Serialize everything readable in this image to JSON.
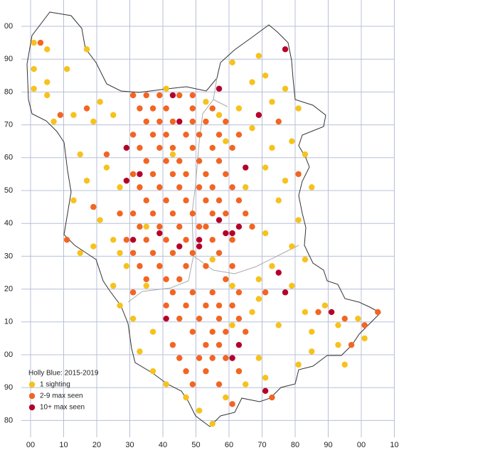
{
  "chart_data": {
    "type": "scatter",
    "title": "Holly Blue:  2015-2019",
    "xlim": [
      0,
      110
    ],
    "ylim": [
      78,
      208
    ],
    "xticks": [
      {
        "value": 0,
        "label": "00"
      },
      10,
      20,
      30,
      40,
      50,
      60,
      70,
      80,
      90,
      {
        "value": 100,
        "label": "00"
      },
      {
        "value": 110,
        "label": "10"
      }
    ],
    "yticks": [
      80,
      90,
      {
        "value": 100,
        "label": "00"
      },
      {
        "value": 110,
        "label": "10"
      },
      {
        "value": 120,
        "label": "20"
      },
      {
        "value": 130,
        "label": "30"
      },
      {
        "value": 140,
        "label": "40"
      },
      {
        "value": 150,
        "label": "50"
      },
      {
        "value": 160,
        "label": "60"
      },
      {
        "value": 170,
        "label": "70"
      },
      {
        "value": 180,
        "label": "80"
      },
      {
        "value": 190,
        "label": "90"
      },
      {
        "value": 200,
        "label": "00"
      }
    ],
    "grid": true,
    "legend": "bottom-left",
    "series": [
      {
        "name": "1 sighting",
        "color": "#f6c21c",
        "x": [
          1,
          5,
          17,
          1,
          5,
          11,
          1,
          5,
          13,
          7,
          21,
          25,
          19,
          15,
          23,
          17,
          27,
          13,
          21,
          19,
          15,
          27,
          29,
          25,
          27,
          31,
          37,
          33,
          37,
          41,
          47,
          51,
          55,
          59,
          41,
          53,
          57,
          63,
          67,
          61,
          69,
          71,
          73,
          77,
          81,
          67,
          73,
          79,
          83,
          71,
          77,
          85,
          75,
          81,
          71,
          79,
          83,
          73,
          69,
          79,
          67,
          75,
          83,
          85,
          89,
          93,
          93,
          99,
          101,
          95,
          85,
          81,
          71,
          65,
          69,
          63,
          35,
          39,
          35,
          43,
          59,
          65,
          55,
          61,
          69,
          25,
          61
        ],
        "y": [
          195,
          193,
          193,
          187,
          183,
          187,
          181,
          179,
          173,
          171,
          177,
          173,
          171,
          161,
          157,
          153,
          151,
          147,
          141,
          133,
          131,
          131,
          127,
          121,
          115,
          111,
          107,
          101,
          95,
          91,
          87,
          83,
          79,
          87,
          181,
          177,
          173,
          175,
          183,
          189,
          191,
          185,
          177,
          181,
          175,
          169,
          163,
          165,
          161,
          157,
          153,
          151,
          147,
          141,
          137,
          133,
          129,
          127,
          123,
          121,
          113,
          109,
          113,
          107,
          115,
          109,
          103,
          111,
          105,
          97,
          101,
          97,
          93,
          91,
          99,
          95,
          121,
          127,
          139,
          161,
          165,
          151,
          129,
          121,
          117,
          135,
          109
        ]
      },
      {
        "name": "2-9 max seen",
        "color": "#f26522",
        "x": [
          31,
          35,
          39,
          45,
          49,
          33,
          37,
          41,
          49,
          55,
          35,
          39,
          43,
          49,
          53,
          59,
          31,
          37,
          41,
          47,
          51,
          57,
          63,
          33,
          39,
          43,
          49,
          55,
          61,
          35,
          41,
          45,
          51,
          57,
          31,
          37,
          43,
          47,
          53,
          59,
          81,
          33,
          39,
          45,
          51,
          55,
          61,
          35,
          41,
          47,
          53,
          57,
          63,
          31,
          37,
          43,
          49,
          55,
          59,
          65,
          33,
          39,
          45,
          51,
          53,
          67,
          29,
          35,
          41,
          47,
          55,
          61,
          31,
          37,
          43,
          49,
          57,
          33,
          39,
          47,
          53,
          61,
          35,
          41,
          45,
          59,
          31,
          43,
          49,
          55,
          63,
          71,
          41,
          47,
          53,
          57,
          61,
          45,
          51,
          57,
          63,
          49,
          55,
          59,
          65,
          43,
          53,
          57,
          45,
          51,
          55,
          59,
          47,
          53,
          63,
          49,
          57,
          3,
          9,
          17,
          11,
          27,
          19,
          23,
          75,
          87,
          95,
          97,
          101,
          105,
          73,
          61
        ],
        "y": [
          179,
          179,
          179,
          179,
          179,
          175,
          175,
          175,
          175,
          175,
          171,
          171,
          171,
          171,
          171,
          171,
          167,
          167,
          167,
          167,
          167,
          167,
          167,
          163,
          163,
          163,
          163,
          163,
          163,
          159,
          159,
          159,
          159,
          159,
          155,
          155,
          155,
          155,
          155,
          155,
          155,
          151,
          151,
          151,
          151,
          151,
          151,
          147,
          147,
          147,
          147,
          147,
          147,
          143,
          143,
          143,
          143,
          143,
          143,
          143,
          139,
          139,
          139,
          139,
          139,
          139,
          135,
          135,
          135,
          135,
          135,
          135,
          131,
          131,
          131,
          131,
          131,
          127,
          127,
          127,
          127,
          127,
          123,
          123,
          123,
          123,
          119,
          119,
          119,
          119,
          119,
          119,
          115,
          115,
          115,
          115,
          115,
          111,
          111,
          111,
          111,
          107,
          107,
          107,
          107,
          103,
          103,
          103,
          99,
          99,
          99,
          99,
          95,
          95,
          95,
          91,
          91,
          195,
          173,
          175,
          135,
          143,
          145,
          161,
          171,
          113,
          111,
          103,
          109,
          113,
          87,
          85
        ]
      },
      {
        "name": "10+ max seen",
        "color": "#b5002a",
        "x": [
          77,
          43,
          69,
          29,
          33,
          29,
          65,
          45,
          57,
          31,
          39,
          57,
          61,
          59,
          63,
          45,
          51,
          51,
          75,
          77,
          41,
          91,
          61,
          63,
          71
        ],
        "y": [
          193,
          179,
          173,
          163,
          155,
          153,
          157,
          171,
          181,
          135,
          137,
          141,
          137,
          137,
          139,
          133,
          135,
          133,
          125,
          119,
          111,
          113,
          99,
          103,
          89
        ]
      }
    ]
  }
}
